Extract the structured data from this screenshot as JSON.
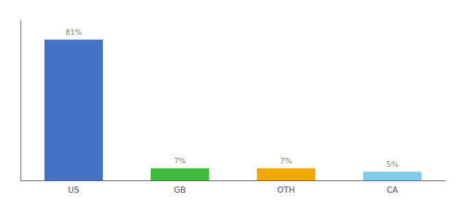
{
  "chart_data": {
    "type": "bar",
    "categories": [
      "US",
      "GB",
      "OTH",
      "CA"
    ],
    "values": [
      81,
      7,
      7,
      5
    ],
    "value_labels": [
      "81%",
      "7%",
      "7%",
      "5%"
    ],
    "data_labels": true,
    "colors": [
      "#4472c4",
      "#3dbb3d",
      "#f0a800",
      "#7eccea"
    ],
    "ylim": [
      0,
      92
    ],
    "grid": false,
    "tick_labels": "x"
  }
}
